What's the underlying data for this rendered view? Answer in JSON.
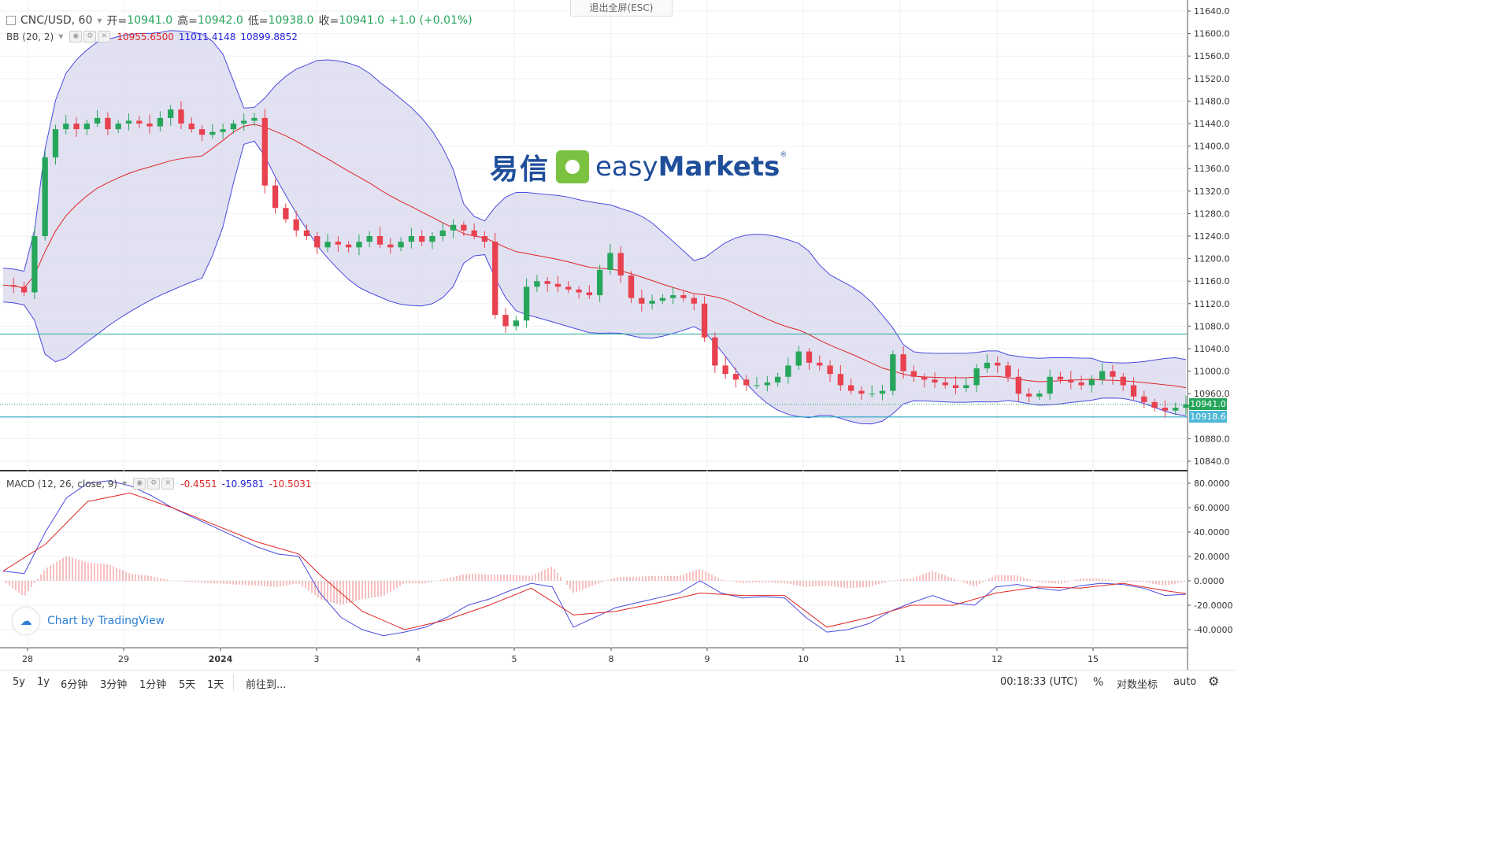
{
  "header": {
    "symbol": "CNC/USD, 60",
    "open_label": "开=",
    "open_value": "10941.0",
    "high_label": "高=",
    "high_value": "10942.0",
    "low_label": "低=",
    "low_value": "10938.0",
    "close_label": "收=",
    "close_value": "10941.0",
    "change": "+1.0 (+0.01%)",
    "exit_fullscreen": "退出全屏(ESC)"
  },
  "bb_legend": {
    "name": "BB (20, 2)",
    "basis": "10955.6500",
    "upper": "11011.4148",
    "lower": "10899.8852"
  },
  "macd_legend": {
    "name": "MACD (12, 26, close, 9)",
    "histogram": "-0.4551",
    "macd": "-10.9581",
    "signal": "-10.5031"
  },
  "logo": {
    "cn": "易信",
    "en_light": "easy",
    "en_bold": "Markets",
    "reg": "®"
  },
  "attribution": "Chart by TradingView",
  "price_axis": [
    "11640.0",
    "11600.0",
    "11560.0",
    "11520.0",
    "11480.0",
    "11440.0",
    "11400.0",
    "11360.0",
    "11320.0",
    "11280.0",
    "11240.0",
    "11200.0",
    "11160.0",
    "11120.0",
    "11080.0",
    "11040.0",
    "11000.0",
    "10960.0",
    "10880.0",
    "10840.0"
  ],
  "price_tags": {
    "last_price": "10941.0",
    "level": "10918.6"
  },
  "macd_axis": [
    "80.0000",
    "60.0000",
    "40.0000",
    "20.0000",
    "0.0000",
    "-20.0000",
    "-40.0000"
  ],
  "time_axis": [
    "28",
    "29",
    "2024",
    "3",
    "4",
    "5",
    "8",
    "9",
    "10",
    "11",
    "12",
    "15"
  ],
  "bottom_bar": {
    "ranges": [
      "5y",
      "1y",
      "6分钟",
      "3分钟",
      "1分钟",
      "5天",
      "1天"
    ],
    "goto": "前往到...",
    "clock": "00:18:33 (UTC)",
    "percent": "%",
    "log": "对数坐标",
    "auto": "auto"
  },
  "colors": {
    "up": "#26a65b",
    "down": "#e8414f",
    "bb_band": "#4a4ae0",
    "bb_basis": "#e02424",
    "bb_fill": "#dcdcf0",
    "macd_line": "#4a4ae0",
    "signal_line": "#e02424",
    "hline_upper": "#26a69a",
    "hline_lower": "#26a0c0",
    "tag_last": "#26a65b",
    "tag_level": "#4fb8d6"
  },
  "chart_data": [
    {
      "type": "candlestick",
      "title": "CNC/USD, 60",
      "ylim": [
        10840,
        11640
      ],
      "x_labels": [
        "28",
        "29",
        "2024",
        "3",
        "4",
        "5",
        "8",
        "9",
        "10",
        "11",
        "12",
        "15"
      ],
      "horizontal_levels": [
        11066,
        10918.6
      ],
      "last_price": 10941.0,
      "close_path": [
        [
          0,
          11153
        ],
        [
          1,
          11150
        ],
        [
          2,
          11140
        ],
        [
          3,
          11240
        ],
        [
          4,
          11380
        ],
        [
          5,
          11430
        ],
        [
          6,
          11440
        ],
        [
          7,
          11430
        ],
        [
          8,
          11440
        ],
        [
          9,
          11450
        ],
        [
          10,
          11430
        ],
        [
          11,
          11440
        ],
        [
          12,
          11445
        ],
        [
          13,
          11440
        ],
        [
          14,
          11435
        ],
        [
          15,
          11450
        ],
        [
          16,
          11465
        ],
        [
          17,
          11440
        ],
        [
          18,
          11430
        ],
        [
          19,
          11420
        ],
        [
          20,
          11425
        ],
        [
          21,
          11430
        ],
        [
          22,
          11440
        ],
        [
          23,
          11445
        ],
        [
          24,
          11450
        ],
        [
          25,
          11330
        ],
        [
          26,
          11290
        ],
        [
          27,
          11270
        ],
        [
          28,
          11250
        ],
        [
          29,
          11240
        ],
        [
          30,
          11220
        ],
        [
          31,
          11230
        ],
        [
          32,
          11225
        ],
        [
          33,
          11220
        ],
        [
          34,
          11230
        ],
        [
          35,
          11240
        ],
        [
          36,
          11225
        ],
        [
          37,
          11220
        ],
        [
          38,
          11230
        ],
        [
          39,
          11240
        ],
        [
          40,
          11230
        ],
        [
          41,
          11240
        ],
        [
          42,
          11250
        ],
        [
          43,
          11260
        ],
        [
          44,
          11250
        ],
        [
          45,
          11240
        ],
        [
          46,
          11230
        ],
        [
          47,
          11100
        ],
        [
          48,
          11080
        ],
        [
          49,
          11090
        ],
        [
          50,
          11150
        ],
        [
          51,
          11160
        ],
        [
          52,
          11155
        ],
        [
          53,
          11150
        ],
        [
          54,
          11145
        ],
        [
          55,
          11140
        ],
        [
          56,
          11135
        ],
        [
          57,
          11180
        ],
        [
          58,
          11210
        ],
        [
          59,
          11170
        ],
        [
          60,
          11130
        ],
        [
          61,
          11120
        ],
        [
          62,
          11125
        ],
        [
          63,
          11130
        ],
        [
          64,
          11135
        ],
        [
          65,
          11130
        ],
        [
          66,
          11120
        ],
        [
          67,
          11060
        ],
        [
          68,
          11010
        ],
        [
          69,
          10995
        ],
        [
          70,
          10985
        ],
        [
          71,
          10975
        ],
        [
          72,
          10975
        ],
        [
          73,
          10980
        ],
        [
          74,
          10990
        ],
        [
          75,
          11010
        ],
        [
          76,
          11035
        ],
        [
          77,
          11015
        ],
        [
          78,
          11010
        ],
        [
          79,
          10995
        ],
        [
          80,
          10975
        ],
        [
          81,
          10965
        ],
        [
          82,
          10960
        ],
        [
          83,
          10960
        ],
        [
          84,
          10965
        ],
        [
          85,
          11030
        ],
        [
          86,
          11000
        ],
        [
          87,
          10990
        ],
        [
          88,
          10985
        ],
        [
          89,
          10980
        ],
        [
          90,
          10975
        ],
        [
          91,
          10970
        ],
        [
          92,
          10975
        ],
        [
          93,
          11005
        ],
        [
          94,
          11015
        ],
        [
          95,
          11010
        ],
        [
          96,
          10990
        ],
        [
          97,
          10960
        ],
        [
          98,
          10955
        ],
        [
          99,
          10960
        ],
        [
          100,
          10990
        ],
        [
          101,
          10985
        ],
        [
          102,
          10980
        ],
        [
          103,
          10975
        ],
        [
          104,
          10985
        ],
        [
          105,
          11000
        ],
        [
          106,
          10990
        ],
        [
          107,
          10975
        ],
        [
          108,
          10955
        ],
        [
          109,
          10945
        ],
        [
          110,
          10935
        ],
        [
          111,
          10930
        ],
        [
          112,
          10935
        ],
        [
          113,
          10941
        ]
      ]
    },
    {
      "type": "line",
      "title": "MACD (12, 26, close, 9)",
      "ylim": [
        -52,
        88
      ],
      "series_macd": [
        [
          0,
          8
        ],
        [
          2,
          6
        ],
        [
          4,
          40
        ],
        [
          6,
          68
        ],
        [
          8,
          80
        ],
        [
          10,
          82
        ],
        [
          12,
          78
        ],
        [
          14,
          70
        ],
        [
          16,
          60
        ],
        [
          18,
          52
        ],
        [
          20,
          44
        ],
        [
          22,
          36
        ],
        [
          24,
          28
        ],
        [
          26,
          22
        ],
        [
          28,
          20
        ],
        [
          30,
          -10
        ],
        [
          32,
          -30
        ],
        [
          34,
          -40
        ],
        [
          36,
          -45
        ],
        [
          38,
          -42
        ],
        [
          40,
          -38
        ],
        [
          42,
          -30
        ],
        [
          44,
          -20
        ],
        [
          46,
          -15
        ],
        [
          48,
          -8
        ],
        [
          50,
          -2
        ],
        [
          52,
          -5
        ],
        [
          54,
          -38
        ],
        [
          56,
          -30
        ],
        [
          58,
          -22
        ],
        [
          60,
          -18
        ],
        [
          62,
          -14
        ],
        [
          64,
          -10
        ],
        [
          66,
          0
        ],
        [
          68,
          -10
        ],
        [
          70,
          -14
        ],
        [
          72,
          -13
        ],
        [
          74,
          -14
        ],
        [
          76,
          -30
        ],
        [
          78,
          -42
        ],
        [
          80,
          -40
        ],
        [
          82,
          -35
        ],
        [
          84,
          -25
        ],
        [
          86,
          -18
        ],
        [
          88,
          -12
        ],
        [
          90,
          -18
        ],
        [
          92,
          -20
        ],
        [
          94,
          -5
        ],
        [
          96,
          -3
        ],
        [
          98,
          -6
        ],
        [
          100,
          -8
        ],
        [
          102,
          -4
        ],
        [
          104,
          -2
        ],
        [
          106,
          -3
        ],
        [
          108,
          -6
        ],
        [
          110,
          -12
        ],
        [
          112,
          -10.96
        ]
      ],
      "series_signal": [
        [
          0,
          8
        ],
        [
          4,
          30
        ],
        [
          8,
          65
        ],
        [
          12,
          72
        ],
        [
          16,
          60
        ],
        [
          20,
          46
        ],
        [
          24,
          32
        ],
        [
          28,
          22
        ],
        [
          30,
          5
        ],
        [
          34,
          -25
        ],
        [
          38,
          -40
        ],
        [
          42,
          -32
        ],
        [
          46,
          -20
        ],
        [
          50,
          -6
        ],
        [
          54,
          -28
        ],
        [
          58,
          -25
        ],
        [
          62,
          -18
        ],
        [
          66,
          -10
        ],
        [
          70,
          -12
        ],
        [
          74,
          -12
        ],
        [
          78,
          -38
        ],
        [
          82,
          -30
        ],
        [
          86,
          -20
        ],
        [
          90,
          -20
        ],
        [
          94,
          -10
        ],
        [
          98,
          -5
        ],
        [
          102,
          -6
        ],
        [
          106,
          -2
        ],
        [
          110,
          -8
        ],
        [
          112,
          -10.5
        ]
      ]
    }
  ]
}
